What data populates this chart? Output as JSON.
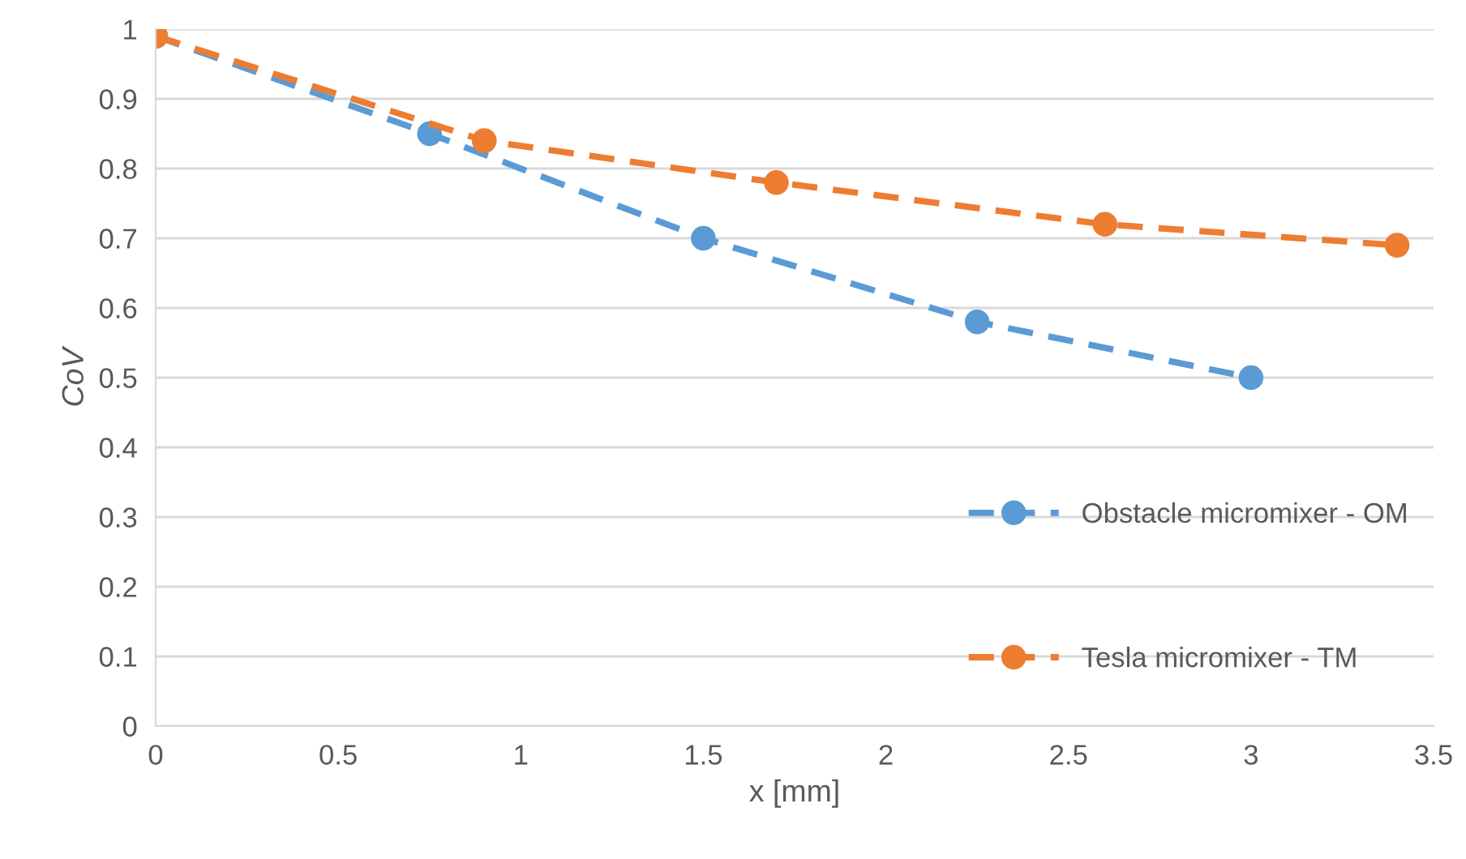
{
  "chart_data": {
    "type": "line",
    "xlabel": "x [mm]",
    "ylabel": "CoV",
    "series": [
      {
        "name": "Obstacle micromixer - OM",
        "color": "#5b9bd5",
        "x": [
          0,
          0.75,
          1.5,
          2.25,
          3
        ],
        "values": [
          0.99,
          0.85,
          0.7,
          0.58,
          0.5
        ]
      },
      {
        "name": "Tesla micromixer - TM",
        "color": "#ed7d31",
        "x": [
          0,
          0.9,
          1.7,
          2.6,
          3.4
        ],
        "values": [
          0.99,
          0.84,
          0.78,
          0.72,
          0.69
        ]
      }
    ],
    "xlim": [
      0,
      3.5
    ],
    "xticks": [
      0,
      0.5,
      1,
      1.5,
      2,
      2.5,
      3,
      3.5
    ],
    "ylim": [
      0,
      1
    ],
    "yticks": [
      0,
      0.1,
      0.2,
      0.3,
      0.4,
      0.5,
      0.6,
      0.7,
      0.8,
      0.9,
      1
    ],
    "grid": "y",
    "legend": "bottom right",
    "marker": "circle",
    "line_style": "dashed"
  }
}
